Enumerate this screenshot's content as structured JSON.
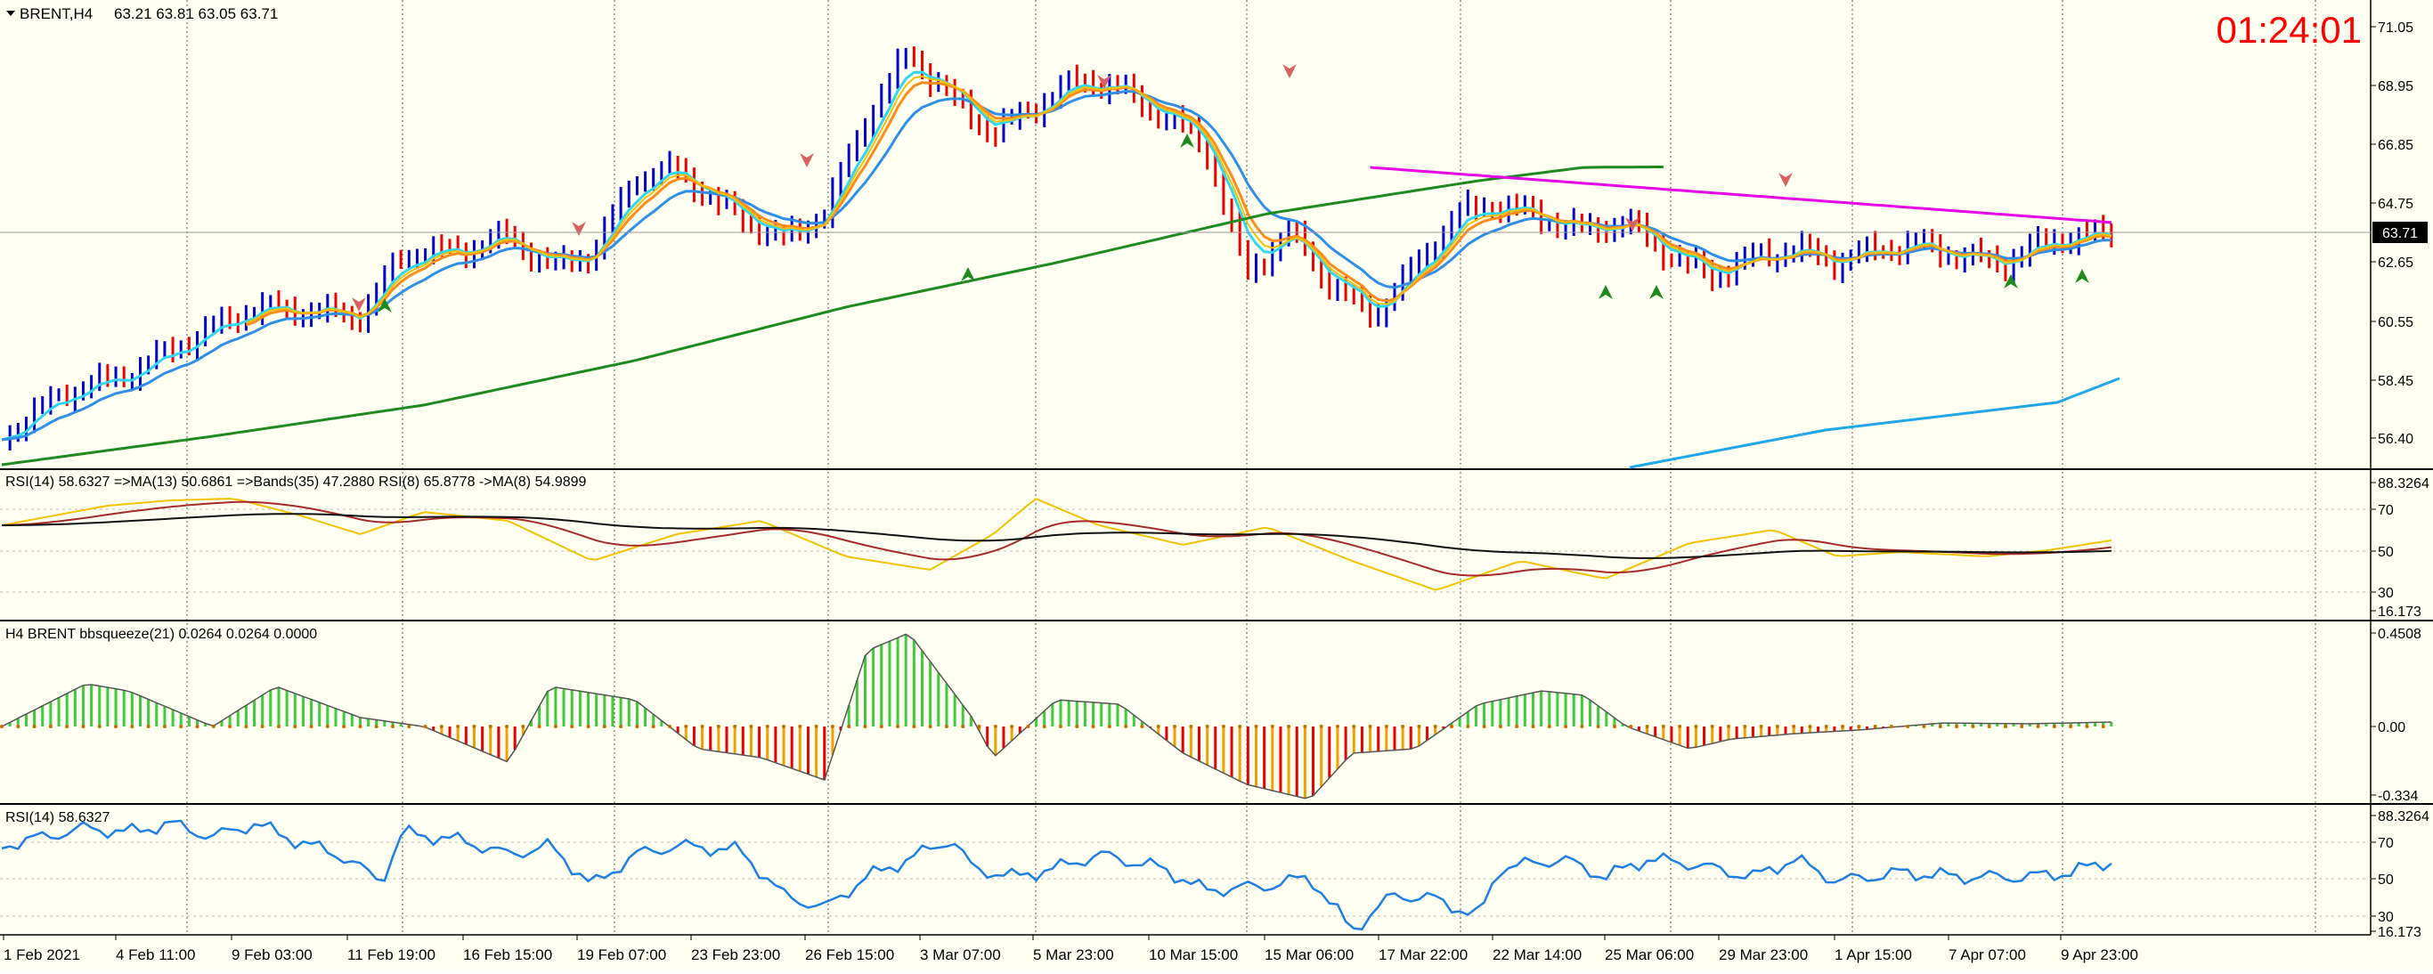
{
  "header": {
    "symbol_label": "BRENT,H4",
    "ohlc": "63.21 63.81 63.05 63.71",
    "timer": "01:24:01"
  },
  "colors": {
    "background": "#FFFFF2",
    "bull_bar": "#0000CC",
    "bear_bar": "#EE0000",
    "ma_fast": "#33D6F2",
    "ma_slow": "#2F8FE6",
    "ma_orange": "#FF8C1A",
    "ma_yellow": "#F2C200",
    "ma_long_green": "#1E8A1E",
    "ma_magenta": "#E600E6",
    "ma_lightblue": "#1FA7E8",
    "timer": "#FF0000",
    "rsi_yellow": "#F2C200",
    "rsi_brown": "#A52A2A",
    "rsi_black": "#111111",
    "rsi_blue": "#1E7FE0",
    "hist_green": "#3DCC3D",
    "hist_red": "#E60000",
    "hist_orange": "#F2A000"
  },
  "price_panel": {
    "current_price": "63.71",
    "y_ticks": [
      "71.05",
      "68.95",
      "66.85",
      "64.75",
      "62.65",
      "60.55",
      "58.45",
      "56.40"
    ]
  },
  "rsi_panel": {
    "label": "RSI(14) 58.6327  =>MA(13) 50.6861  =>Bands(35) 47.2880  RSI(8) 65.8778  ->MA(8) 54.9899",
    "y_ticks": [
      "88.3264",
      "70",
      "50",
      "30",
      "16.173"
    ]
  },
  "bbsqueeze_panel": {
    "label": "H4 BRENT bbsqueeze(21) 0.0264 0.0264 0.0000",
    "y_ticks": [
      "0.4508",
      "0.00",
      "-0.334"
    ]
  },
  "rsi2_panel": {
    "label": "RSI(14) 58.6327",
    "y_ticks": [
      "88.3264",
      "70",
      "50",
      "30",
      "16.173"
    ]
  },
  "x_axis": {
    "labels": [
      "1 Feb 2021",
      "4 Feb 11:00",
      "9 Feb 03:00",
      "11 Feb 19:00",
      "16 Feb 15:00",
      "19 Feb 07:00",
      "23 Feb 23:00",
      "26 Feb 15:00",
      "3 Mar 07:00",
      "5 Mar 23:00",
      "10 Mar 15:00",
      "15 Mar 06:00",
      "17 Mar 22:00",
      "22 Mar 14:00",
      "25 Mar 06:00",
      "29 Mar 23:00",
      "1 Apr 15:00",
      "7 Apr 07:00",
      "9 Apr 23:00"
    ]
  }
}
